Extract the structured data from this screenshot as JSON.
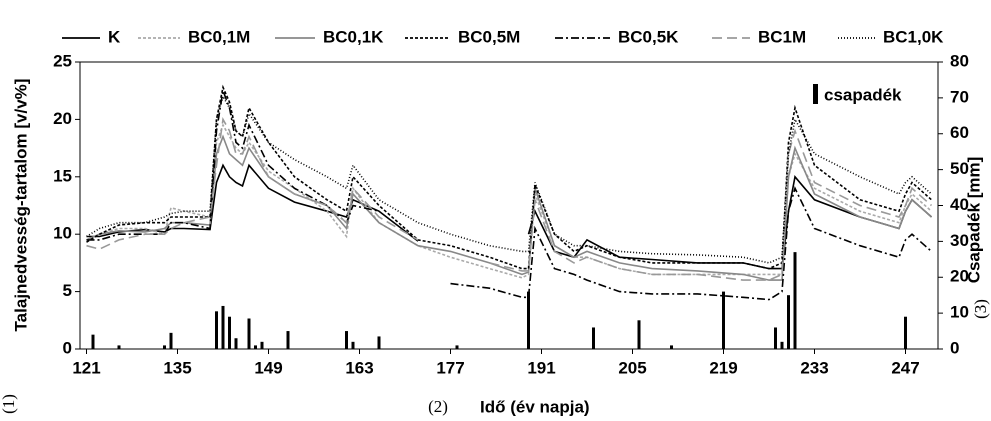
{
  "chart_data": {
    "type": "line",
    "x_label": "Idő (év napja)",
    "y_label": "Talajnedvesség-tartalom [v/v%]",
    "y2_label": "Csapadék [mm]",
    "panel_labels": [
      "(1)",
      "(2)",
      "(3)"
    ],
    "xlim": [
      120,
      252
    ],
    "xticks": [
      121,
      135,
      149,
      163,
      177,
      191,
      205,
      219,
      233,
      247
    ],
    "ylim": [
      0,
      25
    ],
    "yticks": [
      0,
      5,
      10,
      15,
      20,
      25
    ],
    "y2lim": [
      0,
      80
    ],
    "y2ticks": [
      0,
      10,
      20,
      30,
      40,
      50,
      60,
      70,
      80
    ],
    "x": [
      121,
      123,
      126,
      130,
      133,
      134,
      136,
      140,
      141,
      142,
      143,
      144,
      145,
      146,
      149,
      153,
      158,
      161,
      162,
      166,
      172,
      177,
      183,
      188,
      189,
      190,
      193,
      196,
      198,
      203,
      208,
      215,
      222,
      226,
      228,
      229,
      230,
      233,
      240,
      246,
      247,
      248,
      250,
      251
    ],
    "series": [
      {
        "name": "K",
        "color": "#000000",
        "dash": "none",
        "values": [
          9.8,
          9.8,
          10.2,
          10.4,
          10.2,
          10.5,
          10.5,
          10.4,
          14.5,
          16,
          15,
          14.5,
          14.2,
          16,
          14,
          12.8,
          12,
          11.5,
          13,
          12,
          9.4,
          null,
          null,
          null,
          10,
          12,
          8.5,
          8,
          9.5,
          8,
          7.8,
          7.5,
          7.5,
          7,
          7,
          12,
          15,
          13,
          11.5,
          10.5,
          12,
          13,
          12,
          11.5
        ]
      },
      {
        "name": "BC0,1M",
        "color": "#aaaaaa",
        "dash": "3,2",
        "values": [
          9.5,
          10,
          10.5,
          10.5,
          10,
          12.3,
          12,
          11.5,
          18,
          19.5,
          18.5,
          17.5,
          17,
          18,
          15.5,
          14,
          12,
          9.8,
          14,
          11,
          9,
          8,
          7,
          6.2,
          6.5,
          13.5,
          9,
          8,
          8,
          7,
          6.5,
          6.5,
          6.5,
          6.5,
          6.5,
          15,
          17,
          14,
          12,
          11,
          12.5,
          13.5,
          12.5,
          12
        ]
      },
      {
        "name": "BC0,1K",
        "color": "#888888",
        "dash": "none",
        "values": [
          9.5,
          10,
          10.3,
          10.2,
          10.5,
          11,
          11,
          10.8,
          17,
          18.5,
          17,
          16.5,
          16,
          17.5,
          15,
          13.5,
          12.5,
          10.5,
          13.5,
          11,
          9,
          8.5,
          7.5,
          6.5,
          6.7,
          14,
          9,
          8,
          8.5,
          7.5,
          7,
          6.8,
          6.5,
          6,
          6,
          15,
          17.5,
          13.5,
          11.5,
          10.5,
          12,
          13,
          12,
          11.5
        ]
      },
      {
        "name": "BC0,5M",
        "color": "#000000",
        "dash": "3,2",
        "values": [
          9.3,
          10,
          10.8,
          11,
          11,
          11.5,
          11.5,
          11.5,
          20,
          22.8,
          21.5,
          19,
          18.5,
          21,
          18,
          15,
          13,
          12,
          15,
          12.5,
          9.5,
          9,
          8,
          7,
          7,
          14.3,
          10,
          8.5,
          9,
          8,
          7.5,
          7.5,
          7.5,
          7,
          7.5,
          18,
          21,
          16,
          13,
          12,
          13.5,
          14.5,
          13.5,
          13
        ]
      },
      {
        "name": "BC0,5K",
        "color": "#000000",
        "dash": "8,3,2,3",
        "values": [
          9.5,
          9.5,
          10,
          10,
          10,
          11,
          11,
          10.5,
          19,
          22.5,
          21,
          18,
          17.5,
          19.5,
          16,
          14,
          12.5,
          11,
          12.5,
          12,
          null,
          5.7,
          5.3,
          4.5,
          4.5,
          10.5,
          7,
          6.5,
          6,
          5,
          4.8,
          4.8,
          4.5,
          4.3,
          5,
          12,
          14,
          10.5,
          9,
          8,
          9.5,
          10,
          9,
          8.5
        ]
      },
      {
        "name": "BC1M",
        "color": "#999999",
        "dash": "10,5",
        "values": [
          9,
          8.7,
          9.5,
          10,
          10,
          10.5,
          11,
          11.5,
          16,
          20,
          19,
          17,
          17,
          18.5,
          15,
          13.5,
          12.5,
          11,
          14,
          11.5,
          9.5,
          null,
          7.5,
          6.8,
          6.8,
          13,
          8.5,
          7.5,
          8,
          7,
          6.5,
          6.5,
          6,
          6,
          6.5,
          17,
          19,
          14.5,
          12.5,
          11.5,
          12.5,
          14,
          13,
          12.5
        ]
      },
      {
        "name": "BC1,0K",
        "color": "#000000",
        "dash": "1,2",
        "values": [
          9.8,
          10.5,
          11,
          11,
          11.5,
          11.8,
          12,
          12,
          20,
          22,
          21,
          19,
          18.5,
          20.5,
          18,
          16.5,
          15,
          14,
          16,
          13,
          11,
          10,
          9,
          8.5,
          8.5,
          14.5,
          10,
          9,
          9,
          8.5,
          8.3,
          8.2,
          8,
          7.5,
          8,
          17,
          20,
          17,
          15,
          13.5,
          14.5,
          15,
          14,
          13.5
        ]
      }
    ],
    "precipitation": {
      "name": "csapadék",
      "axis": "y2",
      "color": "#000000",
      "x": [
        122,
        126,
        133,
        134,
        141,
        142,
        143,
        144,
        146,
        147,
        148,
        152,
        161,
        162,
        166,
        178,
        189,
        199,
        206,
        211,
        219,
        227,
        228,
        229,
        230,
        247
      ],
      "values": [
        4,
        1,
        1,
        4.5,
        10.5,
        12,
        9,
        3,
        8.5,
        1,
        2,
        5,
        5,
        2,
        3.5,
        1,
        16,
        6,
        8,
        1,
        16,
        6,
        2,
        15,
        27,
        9
      ]
    }
  }
}
